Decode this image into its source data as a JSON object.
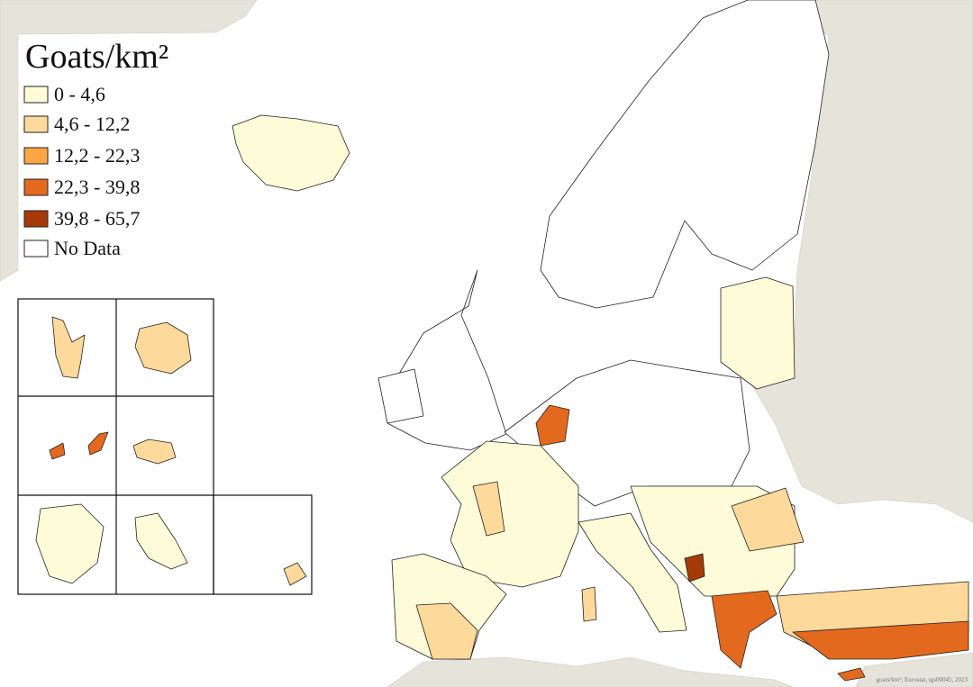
{
  "legend": {
    "title": "Goats/km²",
    "items": [
      {
        "label": "0 - 4,6",
        "color": "#fefbd8"
      },
      {
        "label": "4,6 - 12,2",
        "color": "#fdd99b"
      },
      {
        "label": "12,2 - 22,3",
        "color": "#fca545"
      },
      {
        "label": "22,3 - 39,8",
        "color": "#e3691e"
      },
      {
        "label": "39,8 - 65,7",
        "color": "#a53a08"
      },
      {
        "label": "No Data",
        "color": "#ffffff"
      }
    ]
  },
  "source": "goats/km²; Eurostat, tgs00045, 2023"
}
